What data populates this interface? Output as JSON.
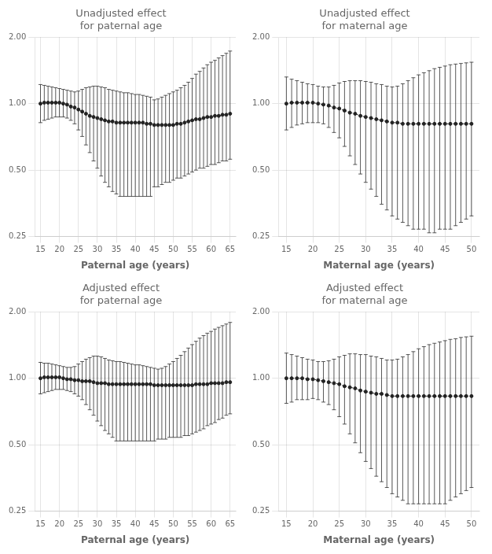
{
  "chart_data": [
    {
      "type": "line",
      "title": "Unadjusted effect\nfor paternal age",
      "x_label": "Paternal age (years)",
      "x": [
        15,
        16,
        17,
        18,
        19,
        20,
        21,
        22,
        23,
        24,
        25,
        26,
        27,
        28,
        29,
        30,
        31,
        32,
        33,
        34,
        35,
        36,
        37,
        38,
        39,
        40,
        41,
        42,
        43,
        44,
        45,
        46,
        47,
        48,
        49,
        50,
        51,
        52,
        53,
        54,
        55,
        56,
        57,
        58,
        59,
        60,
        61,
        62,
        63,
        64,
        65
      ],
      "values": [
        1.0,
        1.01,
        1.01,
        1.01,
        1.01,
        1.01,
        1.0,
        0.99,
        0.97,
        0.96,
        0.94,
        0.92,
        0.9,
        0.88,
        0.87,
        0.86,
        0.85,
        0.84,
        0.83,
        0.83,
        0.82,
        0.82,
        0.82,
        0.82,
        0.82,
        0.82,
        0.82,
        0.82,
        0.81,
        0.81,
        0.8,
        0.8,
        0.8,
        0.8,
        0.8,
        0.8,
        0.81,
        0.81,
        0.82,
        0.83,
        0.84,
        0.85,
        0.85,
        0.86,
        0.87,
        0.87,
        0.88,
        0.88,
        0.89,
        0.89,
        0.9
      ],
      "ci_low": [
        0.82,
        0.84,
        0.85,
        0.86,
        0.87,
        0.87,
        0.87,
        0.86,
        0.84,
        0.81,
        0.76,
        0.71,
        0.65,
        0.6,
        0.55,
        0.51,
        0.47,
        0.44,
        0.42,
        0.4,
        0.39,
        0.38,
        0.38,
        0.38,
        0.38,
        0.38,
        0.38,
        0.38,
        0.38,
        0.38,
        0.42,
        0.42,
        0.43,
        0.44,
        0.44,
        0.45,
        0.46,
        0.46,
        0.47,
        0.48,
        0.49,
        0.5,
        0.51,
        0.51,
        0.52,
        0.53,
        0.53,
        0.54,
        0.55,
        0.55,
        0.56
      ],
      "ci_high": [
        1.22,
        1.21,
        1.2,
        1.19,
        1.18,
        1.17,
        1.16,
        1.15,
        1.14,
        1.13,
        1.14,
        1.16,
        1.18,
        1.19,
        1.2,
        1.2,
        1.19,
        1.18,
        1.16,
        1.15,
        1.14,
        1.13,
        1.12,
        1.12,
        1.11,
        1.1,
        1.1,
        1.09,
        1.08,
        1.07,
        1.04,
        1.05,
        1.07,
        1.09,
        1.11,
        1.13,
        1.15,
        1.18,
        1.21,
        1.25,
        1.3,
        1.36,
        1.4,
        1.45,
        1.5,
        1.54,
        1.57,
        1.61,
        1.65,
        1.69,
        1.73
      ],
      "color": "#222222",
      "marker": "circle",
      "line_style": "dotted",
      "xlim": [
        13.5,
        66.5
      ],
      "xticks": [
        15,
        20,
        25,
        30,
        35,
        40,
        45,
        50,
        55,
        60,
        65
      ],
      "log": "y",
      "ylim": [
        0.25,
        2.0
      ],
      "yticks": [
        0.25,
        {
          "value": 0.5,
          "label": "0.50"
        },
        {
          "value": 1.0,
          "label": "1.00"
        },
        {
          "value": 2.0,
          "label": "2.00"
        }
      ],
      "grid": true
    },
    {
      "type": "line",
      "title": "Unadjusted effect\nfor maternal age",
      "x_label": "Maternal age (years)",
      "x": [
        15,
        16,
        17,
        18,
        19,
        20,
        21,
        22,
        23,
        24,
        25,
        26,
        27,
        28,
        29,
        30,
        31,
        32,
        33,
        34,
        35,
        36,
        37,
        38,
        39,
        40,
        41,
        42,
        43,
        44,
        45,
        46,
        47,
        48,
        49,
        50
      ],
      "values": [
        1.0,
        1.01,
        1.01,
        1.01,
        1.01,
        1.01,
        1.0,
        0.99,
        0.98,
        0.96,
        0.95,
        0.93,
        0.91,
        0.9,
        0.88,
        0.87,
        0.86,
        0.85,
        0.84,
        0.83,
        0.82,
        0.82,
        0.81,
        0.81,
        0.81,
        0.81,
        0.81,
        0.81,
        0.81,
        0.81,
        0.81,
        0.81,
        0.81,
        0.81,
        0.81,
        0.81
      ],
      "ci_low": [
        0.76,
        0.78,
        0.8,
        0.81,
        0.82,
        0.82,
        0.82,
        0.81,
        0.78,
        0.74,
        0.7,
        0.64,
        0.58,
        0.53,
        0.48,
        0.44,
        0.41,
        0.38,
        0.35,
        0.33,
        0.31,
        0.3,
        0.29,
        0.28,
        0.27,
        0.27,
        0.27,
        0.26,
        0.26,
        0.27,
        0.27,
        0.27,
        0.28,
        0.29,
        0.3,
        0.31
      ],
      "ci_high": [
        1.32,
        1.29,
        1.27,
        1.25,
        1.23,
        1.22,
        1.2,
        1.19,
        1.19,
        1.21,
        1.24,
        1.26,
        1.27,
        1.27,
        1.27,
        1.26,
        1.25,
        1.23,
        1.22,
        1.2,
        1.19,
        1.2,
        1.23,
        1.27,
        1.31,
        1.35,
        1.38,
        1.41,
        1.44,
        1.46,
        1.48,
        1.5,
        1.51,
        1.52,
        1.53,
        1.54
      ],
      "color": "#222222",
      "marker": "circle",
      "line_style": "dotted",
      "xlim": [
        13.5,
        51.5
      ],
      "xticks": [
        15,
        20,
        25,
        30,
        35,
        40,
        45,
        50
      ],
      "log": "y",
      "ylim": [
        0.25,
        2.0
      ],
      "yticks": [
        0.25,
        {
          "value": 0.5,
          "label": "0.50"
        },
        {
          "value": 1.0,
          "label": "1.00"
        },
        {
          "value": 2.0,
          "label": "2.00"
        }
      ],
      "grid": true
    },
    {
      "type": "line",
      "title": "Adjusted effect\nfor paternal age",
      "x_label": "Paternal age (years)",
      "x": [
        15,
        16,
        17,
        18,
        19,
        20,
        21,
        22,
        23,
        24,
        25,
        26,
        27,
        28,
        29,
        30,
        31,
        32,
        33,
        34,
        35,
        36,
        37,
        38,
        39,
        40,
        41,
        42,
        43,
        44,
        45,
        46,
        47,
        48,
        49,
        50,
        51,
        52,
        53,
        54,
        55,
        56,
        57,
        58,
        59,
        60,
        61,
        62,
        63,
        64,
        65
      ],
      "values": [
        1.0,
        1.01,
        1.01,
        1.01,
        1.01,
        1.01,
        1.0,
        0.99,
        0.99,
        0.98,
        0.98,
        0.97,
        0.97,
        0.97,
        0.96,
        0.95,
        0.95,
        0.95,
        0.94,
        0.94,
        0.94,
        0.94,
        0.94,
        0.94,
        0.94,
        0.94,
        0.94,
        0.94,
        0.94,
        0.94,
        0.93,
        0.93,
        0.93,
        0.93,
        0.93,
        0.93,
        0.93,
        0.93,
        0.93,
        0.93,
        0.93,
        0.94,
        0.94,
        0.94,
        0.94,
        0.95,
        0.95,
        0.95,
        0.95,
        0.96,
        0.96
      ],
      "ci_low": [
        0.85,
        0.86,
        0.87,
        0.88,
        0.89,
        0.89,
        0.89,
        0.88,
        0.87,
        0.85,
        0.83,
        0.8,
        0.76,
        0.72,
        0.68,
        0.64,
        0.61,
        0.58,
        0.56,
        0.54,
        0.52,
        0.52,
        0.52,
        0.52,
        0.52,
        0.52,
        0.52,
        0.52,
        0.52,
        0.52,
        0.52,
        0.53,
        0.53,
        0.53,
        0.54,
        0.54,
        0.54,
        0.54,
        0.55,
        0.55,
        0.56,
        0.57,
        0.58,
        0.59,
        0.61,
        0.62,
        0.63,
        0.65,
        0.66,
        0.68,
        0.69
      ],
      "ci_high": [
        1.18,
        1.17,
        1.17,
        1.16,
        1.15,
        1.14,
        1.13,
        1.12,
        1.12,
        1.13,
        1.16,
        1.19,
        1.22,
        1.24,
        1.26,
        1.26,
        1.25,
        1.23,
        1.21,
        1.2,
        1.19,
        1.19,
        1.18,
        1.17,
        1.16,
        1.15,
        1.15,
        1.14,
        1.13,
        1.12,
        1.11,
        1.1,
        1.11,
        1.13,
        1.16,
        1.19,
        1.23,
        1.27,
        1.32,
        1.37,
        1.42,
        1.47,
        1.52,
        1.56,
        1.6,
        1.63,
        1.67,
        1.7,
        1.73,
        1.76,
        1.79
      ],
      "color": "#222222",
      "marker": "circle",
      "line_style": "dotted",
      "xlim": [
        13.5,
        66.5
      ],
      "xticks": [
        15,
        20,
        25,
        30,
        35,
        40,
        45,
        50,
        55,
        60,
        65
      ],
      "log": "y",
      "ylim": [
        0.25,
        2.0
      ],
      "yticks": [
        0.25,
        {
          "value": 0.5,
          "label": "0.50"
        },
        {
          "value": 1.0,
          "label": "1.00"
        },
        {
          "value": 2.0,
          "label": "2.00"
        }
      ],
      "grid": true
    },
    {
      "type": "line",
      "title": "Adjusted effect\nfor maternal age",
      "x_label": "Maternal age (years)",
      "x": [
        15,
        16,
        17,
        18,
        19,
        20,
        21,
        22,
        23,
        24,
        25,
        26,
        27,
        28,
        29,
        30,
        31,
        32,
        33,
        34,
        35,
        36,
        37,
        38,
        39,
        40,
        41,
        42,
        43,
        44,
        45,
        46,
        47,
        48,
        49,
        50
      ],
      "values": [
        1.0,
        1.0,
        1.0,
        1.0,
        0.99,
        0.99,
        0.98,
        0.97,
        0.96,
        0.95,
        0.94,
        0.92,
        0.91,
        0.9,
        0.88,
        0.87,
        0.86,
        0.85,
        0.85,
        0.84,
        0.83,
        0.83,
        0.83,
        0.83,
        0.83,
        0.83,
        0.83,
        0.83,
        0.83,
        0.83,
        0.83,
        0.83,
        0.83,
        0.83,
        0.83,
        0.83
      ],
      "ci_low": [
        0.77,
        0.78,
        0.8,
        0.8,
        0.8,
        0.81,
        0.8,
        0.78,
        0.76,
        0.72,
        0.67,
        0.62,
        0.56,
        0.51,
        0.46,
        0.42,
        0.39,
        0.36,
        0.34,
        0.32,
        0.3,
        0.29,
        0.28,
        0.27,
        0.27,
        0.27,
        0.27,
        0.27,
        0.27,
        0.27,
        0.27,
        0.28,
        0.29,
        0.3,
        0.31,
        0.32
      ],
      "ci_high": [
        1.3,
        1.28,
        1.26,
        1.24,
        1.22,
        1.21,
        1.19,
        1.19,
        1.2,
        1.22,
        1.25,
        1.27,
        1.29,
        1.29,
        1.28,
        1.28,
        1.26,
        1.25,
        1.23,
        1.21,
        1.21,
        1.22,
        1.25,
        1.28,
        1.32,
        1.36,
        1.39,
        1.42,
        1.44,
        1.46,
        1.48,
        1.5,
        1.51,
        1.53,
        1.54,
        1.55
      ],
      "color": "#222222",
      "marker": "circle",
      "line_style": "dotted",
      "xlim": [
        13.5,
        51.5
      ],
      "xticks": [
        15,
        20,
        25,
        30,
        35,
        40,
        45,
        50
      ],
      "log": "y",
      "ylim": [
        0.25,
        2.0
      ],
      "yticks": [
        0.25,
        {
          "value": 0.5,
          "label": "0.50"
        },
        {
          "value": 1.0,
          "label": "1.00"
        },
        {
          "value": 2.0,
          "label": "2.00"
        }
      ],
      "grid": true
    }
  ]
}
